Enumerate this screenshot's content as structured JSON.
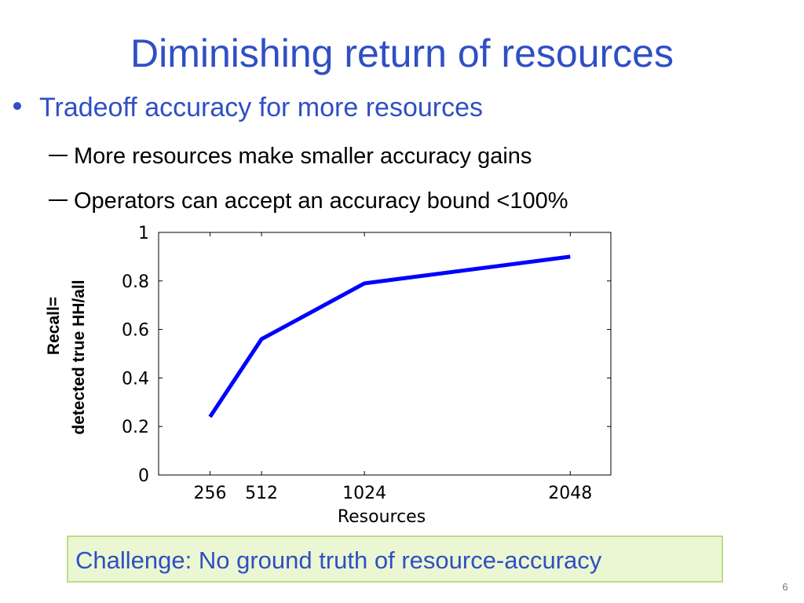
{
  "slide": {
    "title": "Diminishing return of resources",
    "bullets": [
      "Tradeoff accuracy for more resources"
    ],
    "sub_bullets": [
      "More resources make smaller accuracy gains",
      "Operators can accept an accuracy bound <100%"
    ],
    "callout": "Challenge: No ground truth of resource-accuracy",
    "page_number": "6"
  },
  "chart_data": {
    "type": "line",
    "x": [
      256,
      512,
      1024,
      2048
    ],
    "series": [
      {
        "color": "#0000ff",
        "values": [
          0.24,
          0.56,
          0.79,
          0.9
        ]
      }
    ],
    "xlim": [
      0,
      2250
    ],
    "xticks": [
      256,
      512,
      1024,
      2048
    ],
    "ylim": [
      0,
      1
    ],
    "yticks": [
      0,
      0.2,
      0.4,
      0.6,
      0.8,
      1
    ],
    "xlabel": "Resources",
    "ylabel": [
      "Recall=",
      "detected true HH/all"
    ],
    "grid": false
  }
}
